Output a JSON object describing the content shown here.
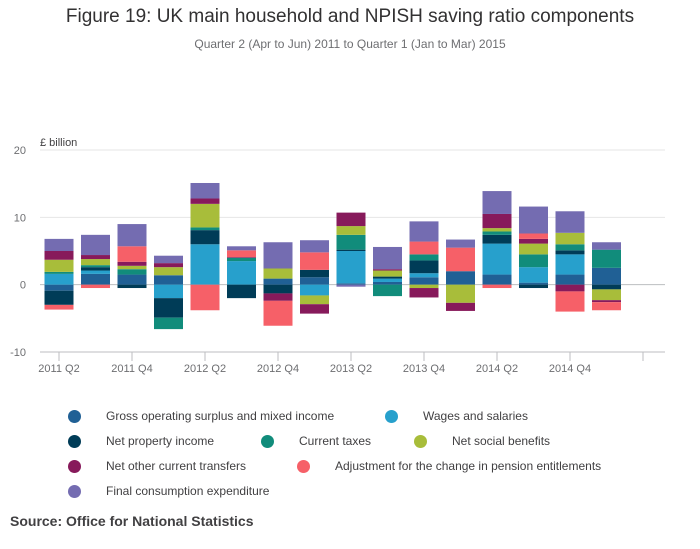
{
  "title": "Figure 19: UK main household and NPISH saving ratio components",
  "subtitle": "Quarter 2 (Apr to Jun) 2011 to Quarter 1 (Jan to Mar) 2015",
  "source": "Source:  Office for National Statistics",
  "chart_data": {
    "type": "bar",
    "stacked": true,
    "ylabel": "£ billion",
    "ylim": [
      -10,
      20
    ],
    "yticks": [
      "20",
      "10",
      "0",
      "-10"
    ],
    "grid": true,
    "legend_position": "bottom",
    "categories": [
      "2011 Q2",
      "2011 Q3",
      "2011 Q4",
      "2012 Q1",
      "2012 Q2",
      "2012 Q3",
      "2012 Q4",
      "2013 Q1",
      "2013 Q2",
      "2013 Q3",
      "2013 Q4",
      "2014 Q1",
      "2014 Q2",
      "2014 Q3",
      "2014 Q4",
      "2015 Q1"
    ],
    "tick_labels": [
      "2011 Q2",
      "",
      "2011 Q4",
      "",
      "2012 Q2",
      "",
      "2012 Q4",
      "",
      "2013 Q2",
      "",
      "2013 Q4",
      "",
      "2014 Q2",
      "",
      "2014 Q4",
      ""
    ],
    "series": [
      {
        "name": "Gross operating surplus and mixed income",
        "color": "#206095",
        "values": [
          -0.9,
          1.6,
          1.5,
          1.4,
          0,
          0,
          0.9,
          1.1,
          0.2,
          0.4,
          1.1,
          2.0,
          1.5,
          0.3,
          1.5,
          2.5
        ]
      },
      {
        "name": "Wages and salaries",
        "color": "#27a0cc",
        "values": [
          1.6,
          0.5,
          0,
          -2.0,
          6.0,
          3.5,
          0,
          -1.6,
          4.8,
          0.5,
          0.6,
          0,
          4.6,
          2.3,
          3.0,
          0
        ]
      },
      {
        "name": "Net property income",
        "color": "#003c57",
        "values": [
          -2.1,
          0.5,
          -0.5,
          -2.9,
          2.1,
          -2.0,
          -1.3,
          1.1,
          0.2,
          0.3,
          1.9,
          0,
          1.3,
          -0.5,
          0.6,
          -0.7
        ]
      },
      {
        "name": "Current taxes",
        "color": "#118c7b",
        "values": [
          0.3,
          0.3,
          0.8,
          -1.7,
          0.4,
          0.5,
          0,
          0,
          2.2,
          -1.7,
          0.9,
          0,
          0.5,
          1.9,
          0.9,
          2.7
        ]
      },
      {
        "name": "Net social benefits",
        "color": "#a8bd3a",
        "values": [
          1.8,
          0.9,
          0.5,
          1.2,
          3.5,
          0,
          1.5,
          -1.3,
          1.3,
          0.9,
          -0.5,
          -2.7,
          0.5,
          1.6,
          1.7,
          -1.6
        ]
      },
      {
        "name": "Net other current transfers",
        "color": "#871a5b",
        "values": [
          1.3,
          0.6,
          0.6,
          0.6,
          0.8,
          0.1,
          -1.1,
          -1.4,
          2.0,
          0.2,
          -1.4,
          -1.2,
          2.1,
          0.7,
          -1.0,
          -0.3
        ]
      },
      {
        "name": "Adjustment for the change in pension entitlements",
        "color": "#f66068",
        "values": [
          -0.7,
          -0.5,
          2.3,
          0,
          -3.8,
          1.0,
          -3.7,
          2.6,
          0,
          0,
          1.9,
          3.5,
          -0.5,
          0.8,
          -3.0,
          -1.2
        ]
      },
      {
        "name": "Final consumption expenditure",
        "color": "#746cb1",
        "values": [
          1.8,
          3.0,
          3.3,
          1.1,
          2.3,
          0.6,
          3.9,
          1.8,
          -0.3,
          3.3,
          3.0,
          1.2,
          3.4,
          4.0,
          3.2,
          1.1
        ]
      }
    ]
  }
}
